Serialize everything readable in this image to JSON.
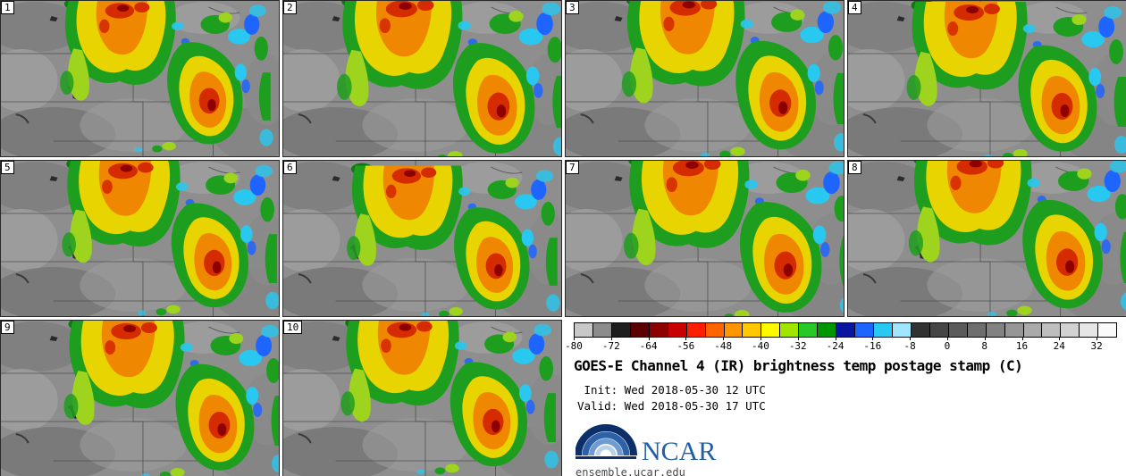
{
  "panels": [
    {
      "number": "1"
    },
    {
      "number": "2"
    },
    {
      "number": "3"
    },
    {
      "number": "4"
    },
    {
      "number": "5"
    },
    {
      "number": "6"
    },
    {
      "number": "7"
    },
    {
      "number": "8"
    },
    {
      "number": "9"
    },
    {
      "number": "10"
    }
  ],
  "colorbar": {
    "min": -80,
    "max": 36,
    "step": 4,
    "units": "C",
    "tick_labels": [
      "-80",
      "-72",
      "-64",
      "-56",
      "-48",
      "-40",
      "-32",
      "-24",
      "-16",
      "-8",
      "0",
      "8",
      "16",
      "24",
      "32"
    ],
    "cell_colors": [
      "#c8c8c8",
      "#8c8c8c",
      "#1e1e1e",
      "#5a0000",
      "#8c0000",
      "#c80000",
      "#ff1e00",
      "#ff6400",
      "#ff9600",
      "#ffc800",
      "#fffa00",
      "#a0e600",
      "#28c828",
      "#009600",
      "#0a14a0",
      "#1e64ff",
      "#28c8f0",
      "#a0e6ff",
      "#323232",
      "#464646",
      "#5a5a5a",
      "#6e6e6e",
      "#828282",
      "#969696",
      "#aaaaaa",
      "#bebebe",
      "#d2d2d2",
      "#e6e6e6",
      "#fafafa"
    ]
  },
  "info": {
    "title": "GOES-E Channel 4 (IR) brightness temp postage stamp (C)",
    "init_line": " Init: Wed 2018-05-30 12 UTC",
    "valid_line": "Valid: Wed 2018-05-30 17 UTC",
    "logo_text": "NCAR",
    "website": "ensemble.ucar.edu",
    "ncar_blue": "#1f5fa8"
  },
  "chart_data": {
    "type": "heatmap",
    "title": "GOES-E Channel 4 (IR) brightness temp postage stamp (C)",
    "units": "C",
    "ensemble_members": [
      1,
      2,
      3,
      4,
      5,
      6,
      7,
      8,
      9,
      10
    ],
    "init": "Wed 2018-05-30 12 UTC",
    "valid": "Wed 2018-05-30 17 UTC",
    "colorbar_ticks": [
      -80,
      -72,
      -64,
      -56,
      -48,
      -40,
      -32,
      -24,
      -16,
      -8,
      0,
      8,
      16,
      24,
      32
    ],
    "colorbar_range": [
      -80,
      36
    ],
    "legend_position": "bottom-right",
    "source": "ensemble.ucar.edu"
  }
}
